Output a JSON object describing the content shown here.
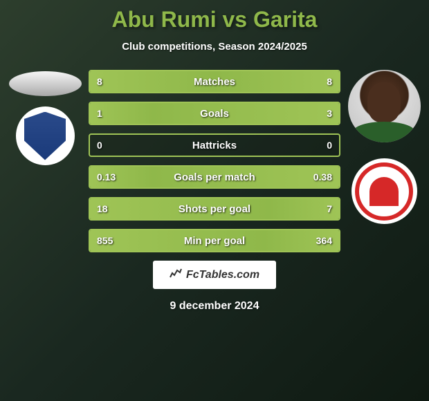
{
  "title": "Abu Rumi vs Garita",
  "subtitle": "Club competitions, Season 2024/2025",
  "footer_brand": "FcTables.com",
  "date": "9 december 2024",
  "colors": {
    "accent": "#8fb84a",
    "bar_fill": "#9fc456",
    "text": "#ffffff",
    "background_start": "#2d3e2d",
    "background_end": "#0f1a12",
    "team2_red": "#d62828",
    "team1_blue": "#2a4a8a"
  },
  "stats": [
    {
      "label": "Matches",
      "left_value": "8",
      "right_value": "8",
      "left_pct": 50,
      "right_pct": 50
    },
    {
      "label": "Goals",
      "left_value": "1",
      "right_value": "3",
      "left_pct": 25,
      "right_pct": 75
    },
    {
      "label": "Hattricks",
      "left_value": "0",
      "right_value": "0",
      "left_pct": 0,
      "right_pct": 0
    },
    {
      "label": "Goals per match",
      "left_value": "0.13",
      "right_value": "0.38",
      "left_pct": 25,
      "right_pct": 75
    },
    {
      "label": "Shots per goal",
      "left_value": "18",
      "right_value": "7",
      "left_pct": 72,
      "right_pct": 28
    },
    {
      "label": "Min per goal",
      "left_value": "855",
      "right_value": "364",
      "left_pct": 70,
      "right_pct": 30
    }
  ]
}
